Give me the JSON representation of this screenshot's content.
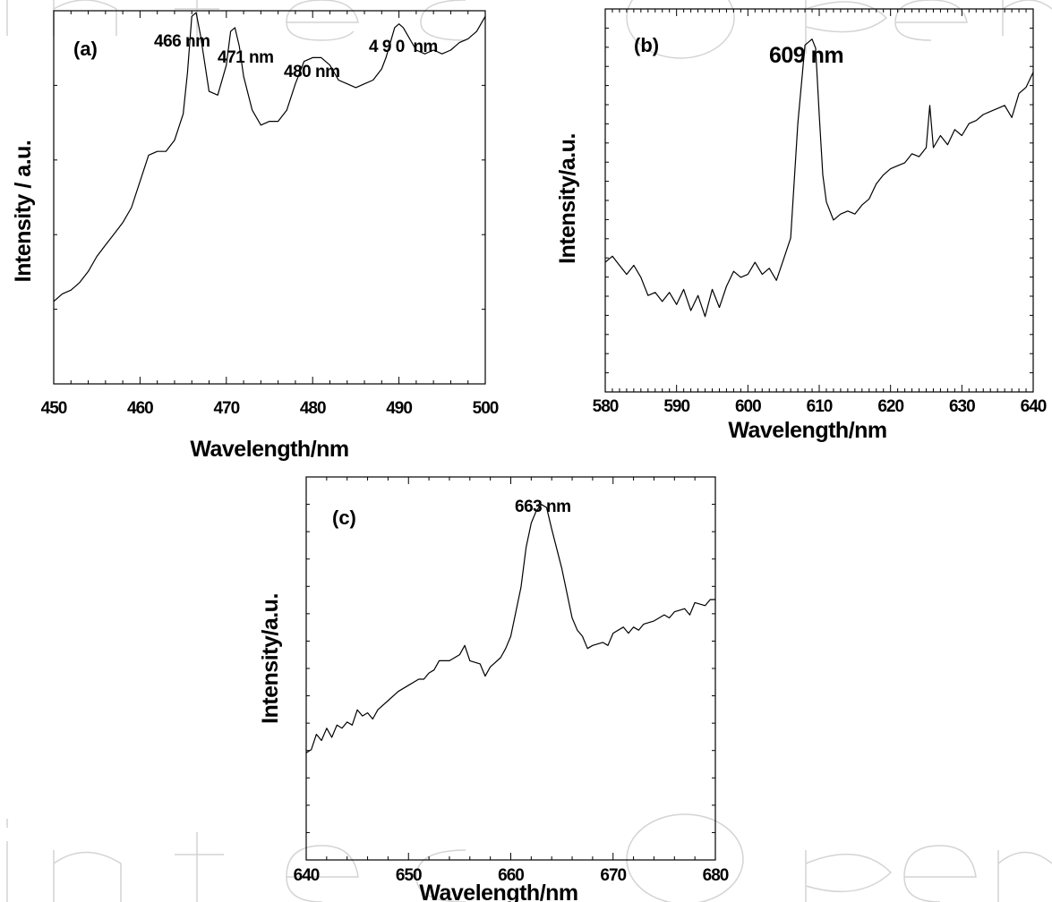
{
  "chart_data": [
    {
      "type": "line",
      "panel_label": "(a)",
      "xlabel": "Wavelength/nm",
      "ylabel": "Intensity / a.u.",
      "xlim": [
        450,
        500
      ],
      "xticks": [
        450,
        460,
        470,
        480,
        490,
        500
      ],
      "ylim": [
        0,
        1
      ],
      "y_tick_labels_shown": false,
      "annotations": [
        {
          "text": "466 nm",
          "x": 466
        },
        {
          "text": "471 nm",
          "x": 471
        },
        {
          "text": "480 nm",
          "x": 480
        },
        {
          "text": "4 9 0  nm",
          "x": 490
        }
      ],
      "series": [
        {
          "x": [
            450,
            451,
            452,
            453,
            454,
            455,
            456,
            457,
            458,
            459,
            460,
            461,
            462,
            463,
            464,
            465,
            465.5,
            466,
            466.5,
            467,
            468,
            469,
            470,
            470.5,
            471,
            471.5,
            472,
            473,
            474,
            475,
            476,
            477,
            478,
            479,
            480,
            481,
            482,
            483,
            484,
            485,
            486,
            487,
            488,
            488.5,
            489,
            489.5,
            490,
            490.5,
            491,
            492,
            493,
            494,
            495,
            496,
            497,
            498,
            499,
            500
          ],
          "y": [
            0.22,
            0.24,
            0.25,
            0.27,
            0.3,
            0.34,
            0.37,
            0.4,
            0.43,
            0.47,
            0.54,
            0.61,
            0.62,
            0.62,
            0.65,
            0.72,
            0.83,
            0.98,
            0.99,
            0.93,
            0.78,
            0.77,
            0.85,
            0.94,
            0.95,
            0.9,
            0.82,
            0.73,
            0.69,
            0.7,
            0.7,
            0.73,
            0.8,
            0.86,
            0.87,
            0.87,
            0.85,
            0.81,
            0.8,
            0.79,
            0.8,
            0.81,
            0.84,
            0.87,
            0.91,
            0.95,
            0.96,
            0.95,
            0.93,
            0.89,
            0.88,
            0.89,
            0.88,
            0.89,
            0.91,
            0.92,
            0.94,
            0.98
          ]
        }
      ]
    },
    {
      "type": "line",
      "panel_label": "(b)",
      "xlabel": "Wavelength/nm",
      "ylabel": "Intensity/a.u.",
      "xlim": [
        580,
        640
      ],
      "xticks": [
        580,
        590,
        600,
        610,
        620,
        630,
        640
      ],
      "ylim": [
        0,
        1
      ],
      "y_tick_labels_shown": false,
      "annotations": [
        {
          "text": "609 nm",
          "x": 609
        }
      ],
      "series": [
        {
          "x": [
            580,
            581,
            582,
            583,
            584,
            585,
            586,
            587,
            588,
            589,
            590,
            591,
            592,
            593,
            594,
            595,
            596,
            597,
            598,
            599,
            600,
            601,
            602,
            603,
            604,
            605,
            606,
            607,
            607.5,
            608,
            608.5,
            609,
            609.5,
            610,
            610.5,
            611,
            612,
            613,
            614,
            615,
            616,
            617,
            618,
            619,
            620,
            621,
            622,
            623,
            624,
            625,
            625.5,
            626,
            627,
            628,
            629,
            630,
            631,
            632,
            633,
            634,
            635,
            636,
            637,
            638,
            639,
            640
          ],
          "y": [
            0.26,
            0.28,
            0.25,
            0.22,
            0.25,
            0.21,
            0.15,
            0.16,
            0.13,
            0.16,
            0.12,
            0.17,
            0.1,
            0.15,
            0.08,
            0.17,
            0.11,
            0.18,
            0.23,
            0.21,
            0.22,
            0.26,
            0.22,
            0.24,
            0.2,
            0.27,
            0.34,
            0.72,
            0.85,
            0.98,
            0.99,
            1.0,
            0.97,
            0.75,
            0.55,
            0.46,
            0.4,
            0.42,
            0.43,
            0.42,
            0.45,
            0.47,
            0.52,
            0.55,
            0.57,
            0.58,
            0.59,
            0.62,
            0.61,
            0.64,
            0.78,
            0.64,
            0.68,
            0.65,
            0.7,
            0.68,
            0.72,
            0.73,
            0.75,
            0.76,
            0.77,
            0.78,
            0.74,
            0.82,
            0.84,
            0.89
          ]
        }
      ]
    },
    {
      "type": "line",
      "panel_label": "(c)",
      "xlabel": "Wavelength/nm",
      "ylabel": "Intensity/a.u.",
      "xlim": [
        640,
        680
      ],
      "xticks": [
        640,
        650,
        660,
        670,
        680
      ],
      "ylim": [
        0,
        1
      ],
      "y_tick_labels_shown": false,
      "annotations": [
        {
          "text": "663 nm",
          "x": 663
        }
      ],
      "series": [
        {
          "x": [
            640,
            640.5,
            641,
            641.5,
            642,
            642.5,
            643,
            643.5,
            644,
            644.5,
            645,
            645.5,
            646,
            646.5,
            647,
            648,
            649,
            650,
            651,
            651.5,
            652,
            652.5,
            653,
            654,
            654.5,
            655,
            655.5,
            656,
            657,
            657.5,
            658,
            659,
            659.5,
            660,
            661,
            661.5,
            662,
            662.5,
            663,
            663.5,
            664,
            665,
            666,
            666.5,
            667,
            667.5,
            668,
            669,
            669.5,
            670,
            671,
            671.5,
            672,
            672.5,
            673,
            674,
            675,
            675.5,
            676,
            677,
            677.5,
            678,
            679,
            679.5,
            680
          ],
          "y": [
            0.18,
            0.19,
            0.24,
            0.22,
            0.26,
            0.23,
            0.27,
            0.26,
            0.28,
            0.27,
            0.32,
            0.3,
            0.31,
            0.29,
            0.32,
            0.35,
            0.38,
            0.4,
            0.42,
            0.42,
            0.44,
            0.45,
            0.48,
            0.48,
            0.49,
            0.5,
            0.53,
            0.48,
            0.47,
            0.43,
            0.46,
            0.49,
            0.52,
            0.56,
            0.72,
            0.85,
            0.93,
            0.97,
            0.99,
            0.98,
            0.91,
            0.78,
            0.62,
            0.58,
            0.56,
            0.52,
            0.53,
            0.54,
            0.53,
            0.57,
            0.59,
            0.57,
            0.59,
            0.58,
            0.6,
            0.61,
            0.63,
            0.62,
            0.64,
            0.65,
            0.63,
            0.67,
            0.66,
            0.68,
            0.68
          ]
        }
      ]
    }
  ]
}
